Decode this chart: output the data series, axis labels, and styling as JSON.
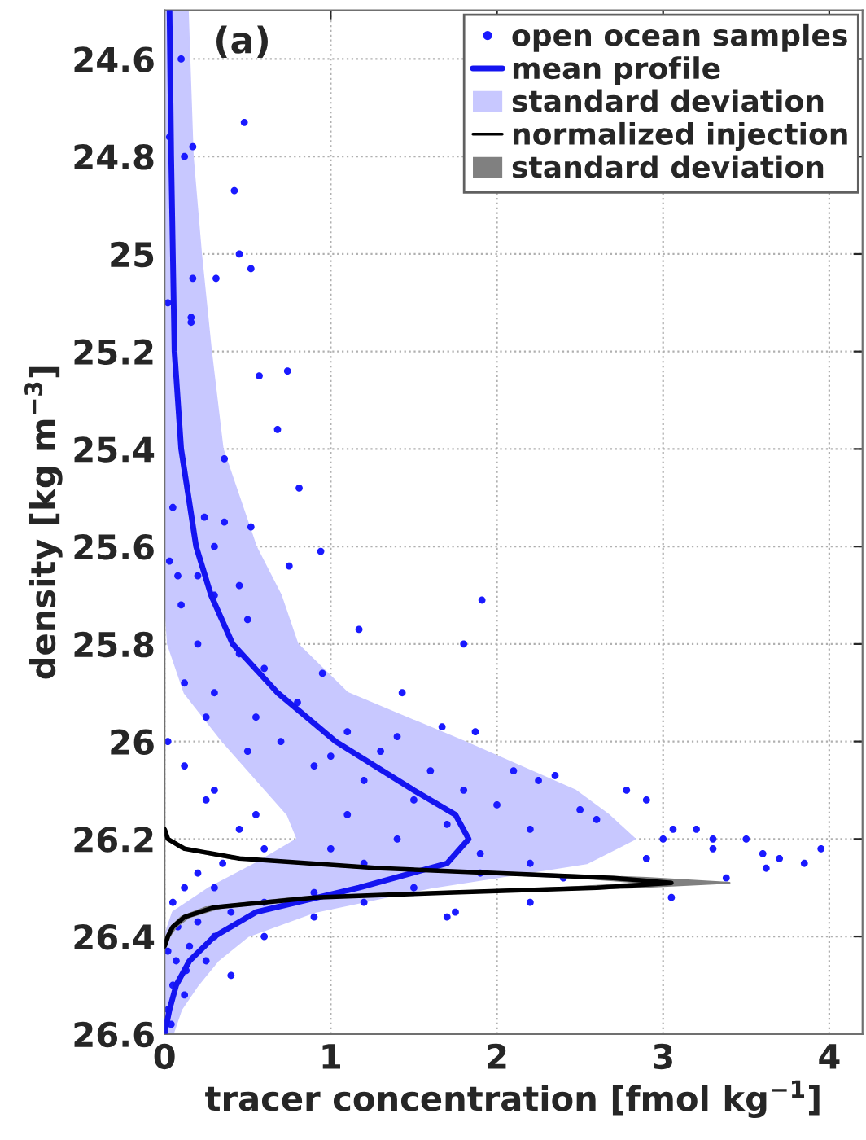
{
  "chart_data": {
    "type": "scatter",
    "orientation": "horizontal",
    "xlabel": "tracer concentration [fmol kg$^{−1}$]",
    "ylabel": "density [kg m$^{−3}$]",
    "annotations": [
      "(a)"
    ],
    "xlim": [
      0,
      4.2
    ],
    "xticks": [
      0,
      1,
      2,
      3,
      4
    ],
    "ylim": [
      26.6,
      24.5
    ],
    "yticks": [
      24.6,
      24.8,
      25,
      25.2,
      25.4,
      25.6,
      25.8,
      26,
      26.2,
      26.4,
      26.6
    ],
    "grid": true,
    "legend": "top right",
    "line_style": "solid",
    "series": [
      {
        "name": "open ocean samples",
        "color": "#1a1aff",
        "marker": "circle",
        "x": [
          24.6,
          24.73,
          24.78,
          24.8,
          24.87,
          24.76,
          25.0,
          25.03,
          25.05,
          25.05,
          25.1,
          25.13,
          25.14,
          25.25,
          25.24,
          25.36,
          25.48,
          25.42,
          25.52,
          25.54,
          25.56,
          25.55,
          25.61,
          25.63,
          25.64,
          25.66,
          25.66,
          25.71,
          25.8,
          25.97,
          25.98,
          25.77,
          25.86,
          25.9,
          26.22,
          26.2,
          26.23,
          26.24,
          26.26,
          26.25,
          26.28,
          26.1,
          26.12,
          26.18,
          26.2,
          26.18,
          26.2,
          26.22,
          26.08,
          26.06,
          26.07,
          26.14,
          26.16,
          26.24,
          26.32,
          26.33,
          26.35,
          26.36,
          26.03,
          25.99,
          26.0,
          26.05,
          26.1,
          26.12,
          26.15,
          26.18,
          26.22,
          26.25,
          26.27,
          26.3,
          26.3,
          26.33,
          26.35,
          26.37,
          26.38,
          26.4,
          26.4,
          26.42,
          26.43,
          26.45,
          26.45,
          26.47,
          26.48,
          26.5,
          26.52,
          26.55,
          26.58,
          26.36,
          26.33,
          26.3,
          26.27,
          26.25,
          26.28,
          26.33,
          26.31,
          25.7,
          25.75,
          25.8,
          25.85,
          25.9,
          25.92,
          25.95,
          25.98,
          26.0,
          26.02,
          26.05,
          26.06,
          26.08,
          26.1,
          26.12,
          26.13,
          26.15,
          26.17,
          26.2,
          26.22,
          26.23,
          26.25,
          26.18,
          25.72,
          25.82,
          25.88,
          25.95,
          26.02,
          25.6,
          25.68
        ],
        "values": [
          0.1,
          0.48,
          0.17,
          0.12,
          0.42,
          0.03,
          0.45,
          0.52,
          0.17,
          0.31,
          0.02,
          0.16,
          0.16,
          0.57,
          0.74,
          0.68,
          0.81,
          0.36,
          0.05,
          0.24,
          0.52,
          0.36,
          0.94,
          0.03,
          0.75,
          0.08,
          0.2,
          1.91,
          1.8,
          1.67,
          1.87,
          1.17,
          0.95,
          1.43,
          3.95,
          3.5,
          3.6,
          3.7,
          3.62,
          3.85,
          3.38,
          2.78,
          2.9,
          3.06,
          3.0,
          3.2,
          3.3,
          3.3,
          2.25,
          2.1,
          2.35,
          2.5,
          2.6,
          2.9,
          3.05,
          2.2,
          1.75,
          1.7,
          1.0,
          1.4,
          0.02,
          0.12,
          0.3,
          0.25,
          0.55,
          0.45,
          0.6,
          0.35,
          0.2,
          0.3,
          0.12,
          0.05,
          0.4,
          0.2,
          0.08,
          0.3,
          0.6,
          0.15,
          0.02,
          0.25,
          0.07,
          0.13,
          0.4,
          0.05,
          0.12,
          0.02,
          0.04,
          0.9,
          1.2,
          1.5,
          1.9,
          2.2,
          2.4,
          0.6,
          0.9,
          0.3,
          0.5,
          0.2,
          0.6,
          0.3,
          0.8,
          0.55,
          1.1,
          0.7,
          1.3,
          0.9,
          1.6,
          1.2,
          1.8,
          1.5,
          2.0,
          1.1,
          1.7,
          1.4,
          1.0,
          1.9,
          1.2,
          2.2,
          0.1,
          0.45,
          0.12,
          0.25,
          0.5,
          0.3,
          0.45
        ]
      },
      {
        "type": "line",
        "name": "mean profile",
        "color": "#1414f0",
        "x": [
          24.5,
          24.8,
          25.0,
          25.2,
          25.4,
          25.6,
          25.7,
          25.8,
          25.9,
          26.0,
          26.1,
          26.15,
          26.2,
          26.25,
          26.3,
          26.35,
          26.4,
          26.45,
          26.5,
          26.55,
          26.6
        ],
        "values": [
          0.03,
          0.04,
          0.05,
          0.06,
          0.1,
          0.19,
          0.28,
          0.41,
          0.68,
          1.03,
          1.5,
          1.75,
          1.83,
          1.7,
          1.17,
          0.55,
          0.3,
          0.15,
          0.07,
          0.03,
          0
        ],
        "lower": [
          0,
          0,
          0,
          0,
          0,
          0,
          0,
          0.02,
          0.12,
          0.35,
          0.61,
          0.74,
          0.8,
          0.55,
          0.27,
          0.05,
          0,
          0,
          0,
          0,
          0
        ],
        "upper": [
          0.14,
          0.17,
          0.22,
          0.28,
          0.35,
          0.55,
          0.7,
          0.8,
          1.1,
          1.8,
          2.47,
          2.67,
          2.83,
          2.54,
          1.6,
          0.9,
          0.5,
          0.32,
          0.2,
          0.1,
          0.05
        ]
      },
      {
        "type": "area",
        "name": "standard deviation",
        "color": "#c8c8ff"
      },
      {
        "type": "line",
        "name": "normalized injection",
        "color": "#000000",
        "x": [
          26.18,
          26.2,
          26.22,
          26.24,
          26.26,
          26.27,
          26.28,
          26.29,
          26.3,
          26.31,
          26.32,
          26.34,
          26.36,
          26.38,
          26.4,
          26.42
        ],
        "values": [
          0,
          0.02,
          0.12,
          0.45,
          1.3,
          2.0,
          2.7,
          3.05,
          2.6,
          1.7,
          0.9,
          0.3,
          0.12,
          0.05,
          0.02,
          0
        ],
        "lower": [
          0,
          0.01,
          0.1,
          0.4,
          1.2,
          1.85,
          2.5,
          2.9,
          2.4,
          1.55,
          0.8,
          0.25,
          0.1,
          0.04,
          0.01,
          0
        ],
        "upper": [
          0.01,
          0.03,
          0.14,
          0.5,
          1.4,
          2.15,
          2.9,
          3.4,
          2.8,
          1.85,
          1.0,
          0.35,
          0.15,
          0.07,
          0.03,
          0.01
        ]
      },
      {
        "type": "area",
        "name": "standard deviation",
        "color": "#808080"
      }
    ]
  }
}
